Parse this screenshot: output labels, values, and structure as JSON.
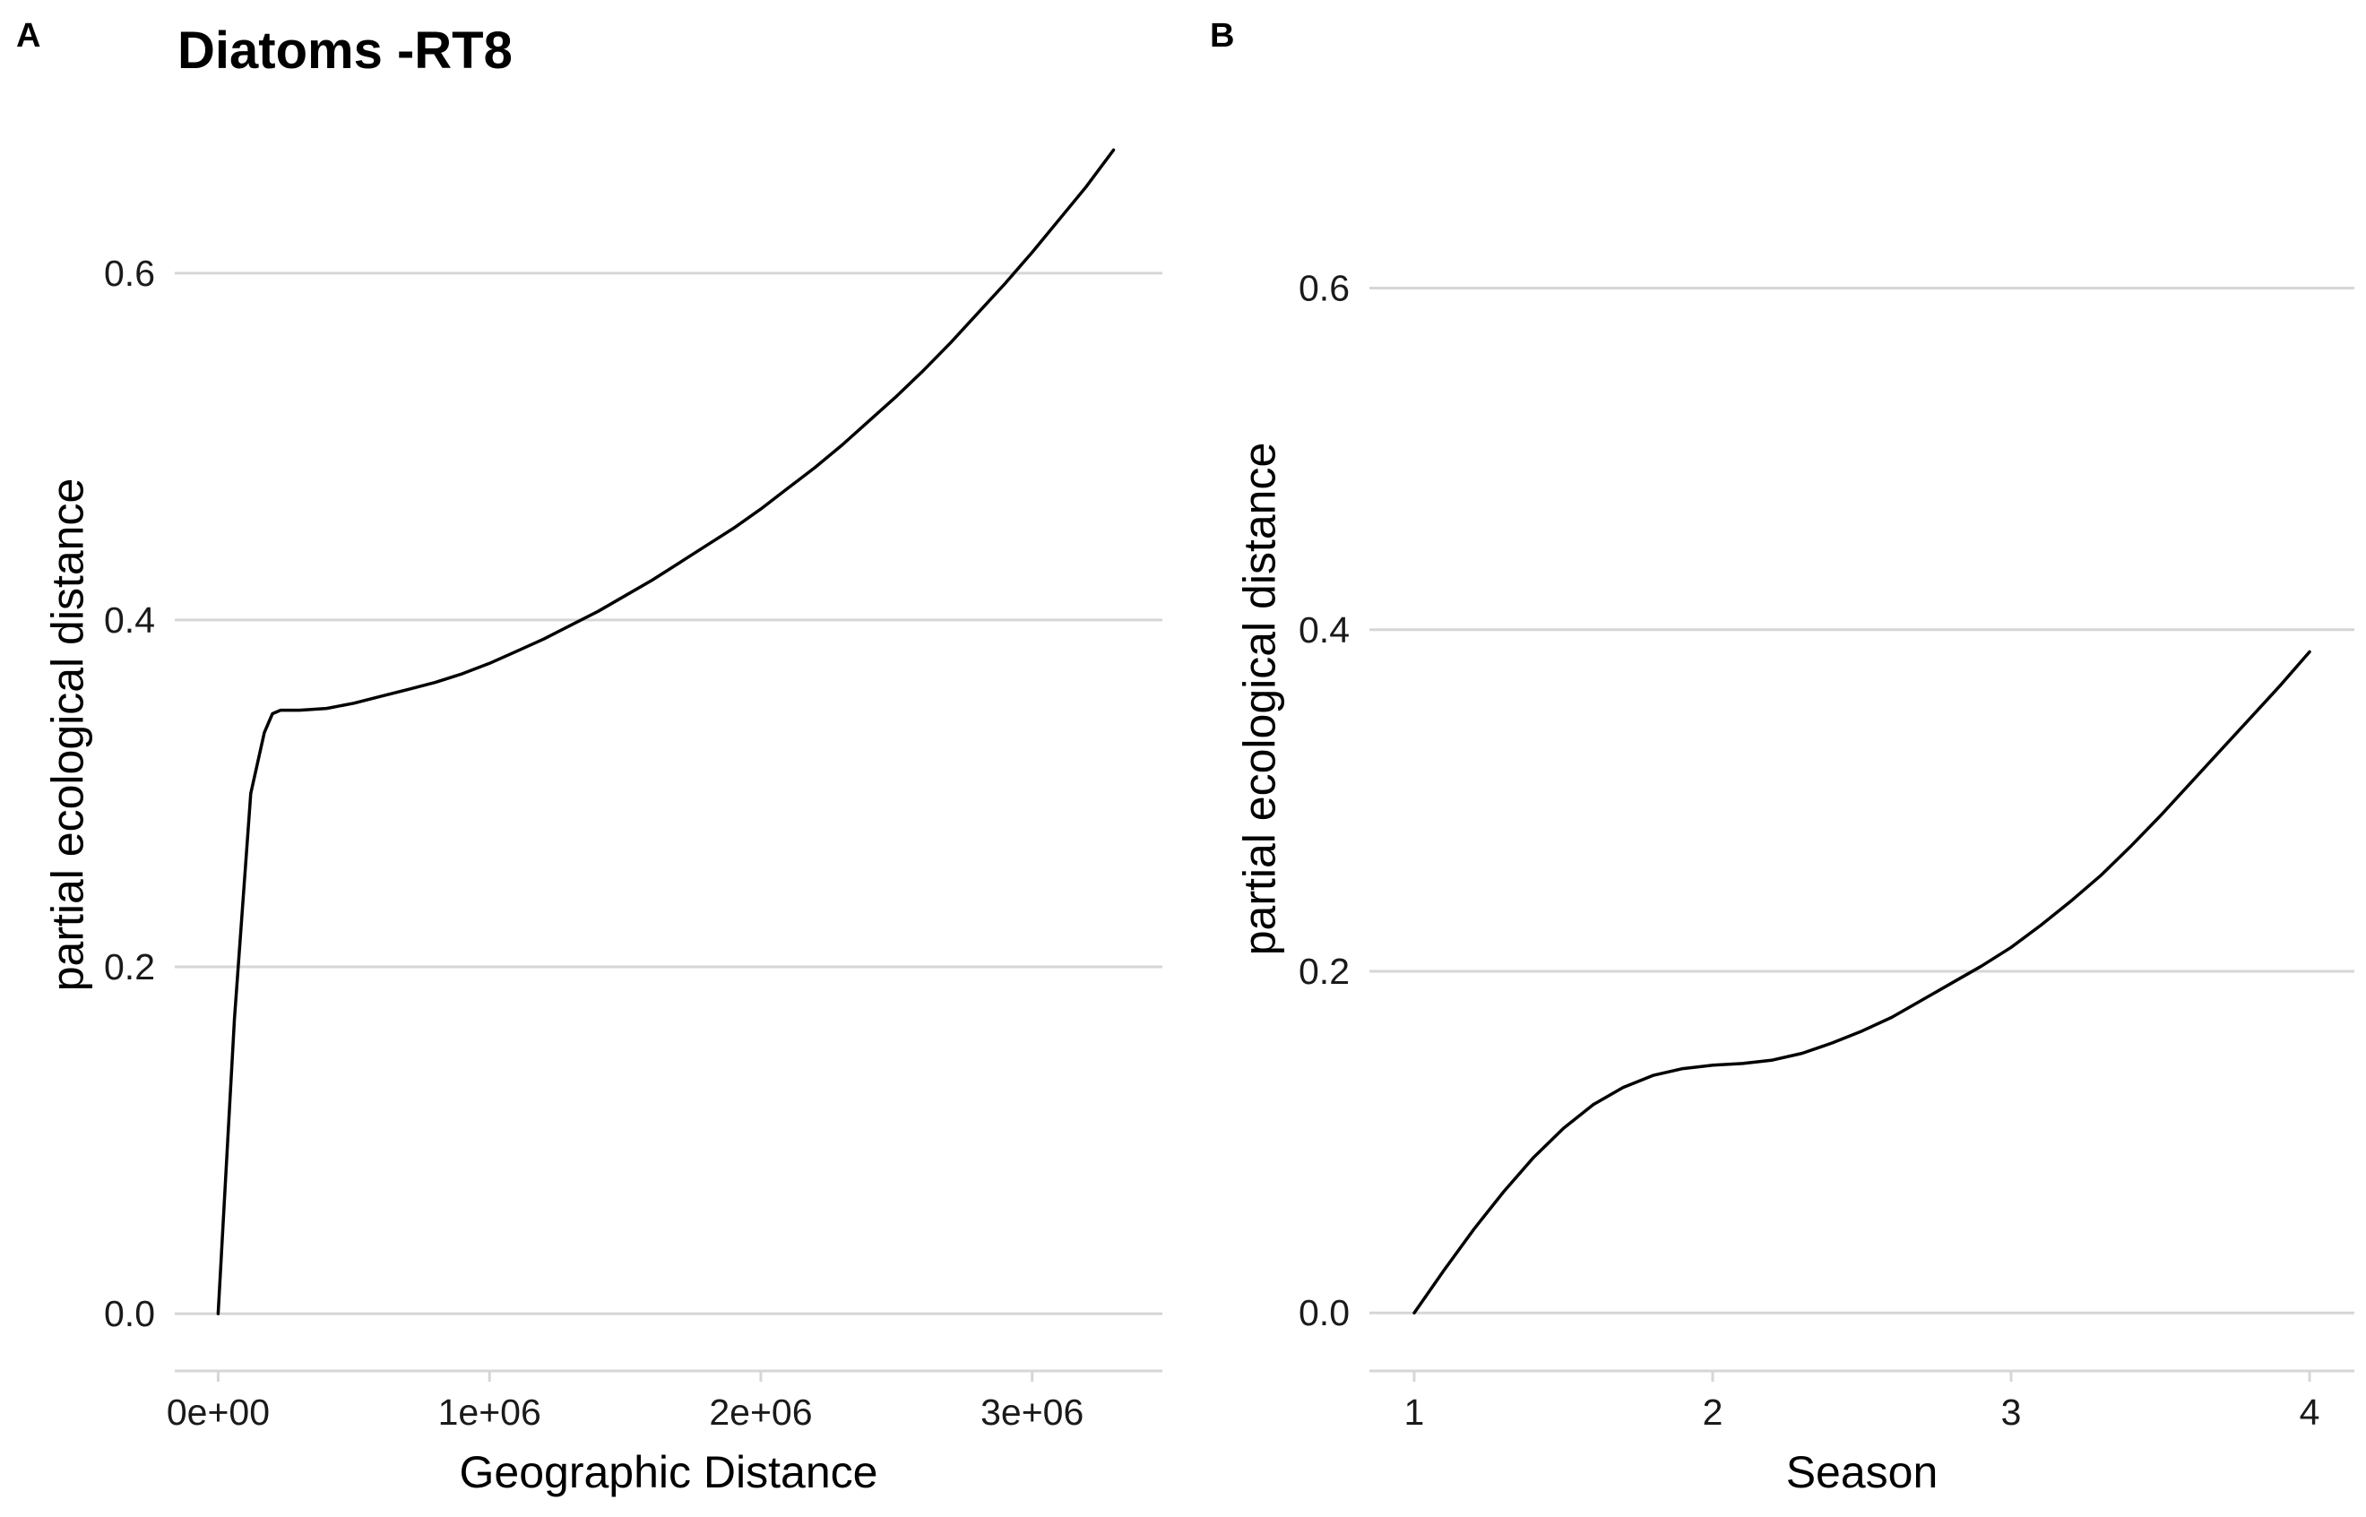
{
  "chart_data": [
    {
      "type": "line",
      "panel_label": "A",
      "title": "Diatoms -RT8",
      "xlabel": "Geographic Distance",
      "ylabel": "partial ecological distance",
      "xlim": [
        -160000,
        3480000
      ],
      "ylim": [
        -0.033,
        0.68
      ],
      "x_ticks": [
        0,
        1000000,
        2000000,
        3000000
      ],
      "x_tick_labels": [
        "0e+00",
        "1e+06",
        "2e+06",
        "3e+06"
      ],
      "y_ticks": [
        0.0,
        0.2,
        0.4,
        0.6
      ],
      "y_tick_labels": [
        "0.0",
        "0.2",
        "0.4",
        "0.6"
      ],
      "grid": "horizontal",
      "line_color": "#000000",
      "series": [
        {
          "x": [
            0,
            60000,
            120000,
            170000,
            200000,
            230000,
            300000,
            400000,
            500000,
            600000,
            700000,
            800000,
            900000,
            1000000,
            1100000,
            1200000,
            1300000,
            1400000,
            1500000,
            1600000,
            1700000,
            1800000,
            1900000,
            2000000,
            2100000,
            2200000,
            2300000,
            2400000,
            2500000,
            2600000,
            2700000,
            2800000,
            2900000,
            3000000,
            3100000,
            3200000,
            3300000
          ],
          "y": [
            0.0,
            0.17,
            0.3,
            0.335,
            0.346,
            0.348,
            0.348,
            0.349,
            0.352,
            0.356,
            0.36,
            0.364,
            0.369,
            0.375,
            0.382,
            0.389,
            0.397,
            0.405,
            0.414,
            0.423,
            0.433,
            0.443,
            0.453,
            0.464,
            0.476,
            0.488,
            0.501,
            0.515,
            0.529,
            0.544,
            0.56,
            0.577,
            0.594,
            0.612,
            0.631,
            0.65,
            0.671
          ]
        }
      ]
    },
    {
      "type": "line",
      "panel_label": "B",
      "title": "",
      "xlabel": "Season",
      "ylabel": "partial ecological distance",
      "xlim": [
        0.85,
        4.15
      ],
      "ylim": [
        -0.034,
        0.69
      ],
      "x_ticks": [
        1,
        2,
        3,
        4
      ],
      "x_tick_labels": [
        "1",
        "2",
        "3",
        "4"
      ],
      "y_ticks": [
        0.0,
        0.2,
        0.4,
        0.6
      ],
      "y_tick_labels": [
        "0.0",
        "0.2",
        "0.4",
        "0.6"
      ],
      "grid": "horizontal",
      "line_color": "#000000",
      "series": [
        {
          "x": [
            1.0,
            1.1,
            1.2,
            1.3,
            1.4,
            1.5,
            1.6,
            1.7,
            1.8,
            1.9,
            2.0,
            2.1,
            2.2,
            2.3,
            2.4,
            2.5,
            2.6,
            2.7,
            2.8,
            2.9,
            3.0,
            3.1,
            3.2,
            3.3,
            3.4,
            3.5,
            3.6,
            3.7,
            3.8,
            3.9,
            4.0
          ],
          "y": [
            0.0,
            0.025,
            0.049,
            0.071,
            0.091,
            0.108,
            0.122,
            0.132,
            0.139,
            0.143,
            0.145,
            0.146,
            0.148,
            0.152,
            0.158,
            0.165,
            0.173,
            0.183,
            0.193,
            0.203,
            0.214,
            0.227,
            0.241,
            0.256,
            0.273,
            0.291,
            0.31,
            0.329,
            0.348,
            0.367,
            0.387
          ]
        }
      ]
    }
  ]
}
